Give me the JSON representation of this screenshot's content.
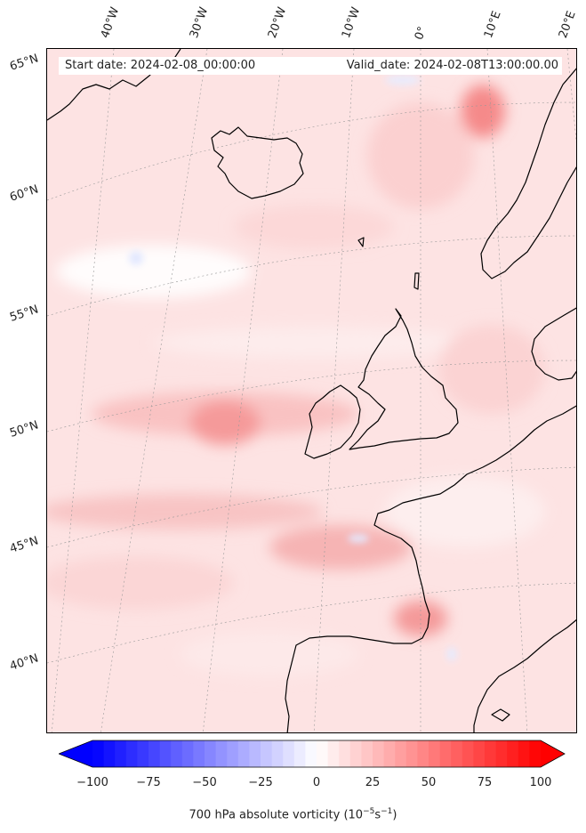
{
  "header": {
    "start_date": "Start date: 2024-02-08_00:00:00",
    "valid_date": "Valid_date: 2024-02-08T13:00:00.00"
  },
  "map": {
    "field": "700 hPa absolute vorticity",
    "projection": "rotated polar stereographic",
    "region": "North-East Atlantic / Western Europe",
    "coastline_color": "#000000",
    "gridline_style": "dotted grey"
  },
  "lon_labels": [
    "40°W",
    "30°W",
    "20°W",
    "10°W",
    "0°",
    "10°E",
    "20°E"
  ],
  "lat_labels": [
    "65°N",
    "60°N",
    "55°N",
    "50°N",
    "45°N",
    "40°N"
  ],
  "colorbar": {
    "label": "700 hPa absolute vorticity (10",
    "label_exp": "−5",
    "label_mid": "s",
    "label_exp2": "−1",
    "label_end": ")",
    "min": -100,
    "max": 100,
    "ticks": [
      "−100",
      "−75",
      "−50",
      "−25",
      "0",
      "25",
      "50",
      "75",
      "100"
    ],
    "tick_values": [
      -100,
      -75,
      -50,
      -25,
      0,
      25,
      50,
      75,
      100
    ],
    "colormap": "bwr",
    "extend": "both",
    "color_min": "#0000ff",
    "color_mid": "#ffffff",
    "color_max": "#ff0000"
  }
}
